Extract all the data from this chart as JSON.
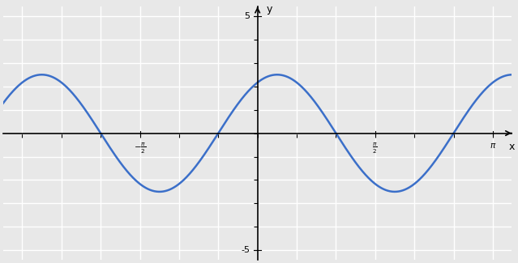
{
  "amplitude": 2.5,
  "B": 2,
  "phase_shift": 0.5235987755982988,
  "x_min": -3.141592653589793,
  "x_max": 3.141592653589793,
  "y_min": -5,
  "y_max": 5,
  "x_ticks": [
    -1.5707963267948966,
    1.5707963267948966,
    3.141592653589793
  ],
  "x_tick_labels": [
    "-π/2",
    "π/2",
    "π"
  ],
  "y_ticks": [
    -5,
    5
  ],
  "y_tick_labels": [
    "-5",
    "5"
  ],
  "line_color": "#3b6fc9",
  "line_width": 1.8,
  "background_color": "#e8e8e8",
  "grid_color": "#ffffff",
  "grid_linewidth": 1.0,
  "title": ""
}
